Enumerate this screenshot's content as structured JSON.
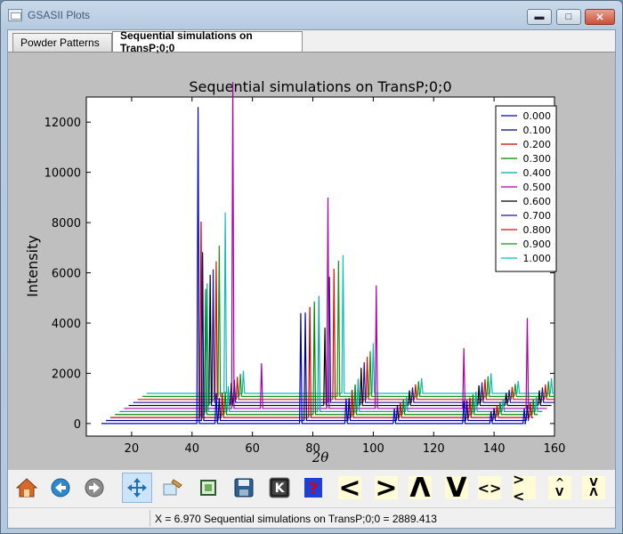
{
  "window": {
    "title": "GSASII Plots"
  },
  "tabs": [
    {
      "label": "Powder Patterns",
      "active": false
    },
    {
      "label": "Sequential simulations on TransP;0;0",
      "active": true
    }
  ],
  "toolbar": {
    "buttons": [
      {
        "name": "home-button",
        "icon": "home-icon"
      },
      {
        "name": "back-button",
        "icon": "back-arrow-icon"
      },
      {
        "name": "forward-button",
        "icon": "forward-arrow-icon"
      },
      {
        "name": "pan-button",
        "icon": "pan-arrows-icon",
        "active": true
      },
      {
        "name": "zoom-button",
        "icon": "zoom-icon"
      },
      {
        "name": "subplots-button",
        "icon": "subplots-icon"
      },
      {
        "name": "save-button",
        "icon": "floppy-disk-icon"
      },
      {
        "name": "key-button",
        "icon": "key-k-icon"
      },
      {
        "name": "help-button",
        "icon": "help-question-icon"
      }
    ],
    "glyph_buttons": [
      "<",
      ">",
      "Λ",
      "V",
      "<>",
      "><",
      "^\nV",
      "V\nΛ"
    ]
  },
  "status": {
    "text": "X =    6.970 Sequential simulations on TransP;0;0 = 2889.413"
  },
  "colors": {
    "accent": "#3399ff"
  },
  "chart_data": {
    "type": "line",
    "title": "Sequential simulations on TransP;0;0",
    "xlabel": "2θ",
    "ylabel": "Intensity",
    "xlim": [
      5,
      160
    ],
    "ylim": [
      -500,
      13000
    ],
    "xticks": [
      20,
      40,
      60,
      80,
      100,
      120,
      140,
      160
    ],
    "yticks": [
      0,
      2000,
      4000,
      6000,
      8000,
      10000,
      12000
    ],
    "x_offset_per_series": 1.5,
    "y_offset_per_series": 120,
    "x_range_series0": [
      10,
      150
    ],
    "legend_position": "top-right",
    "series": [
      {
        "name": "0.000",
        "color": "#0000cc",
        "peaks": [
          [
            42,
            12600
          ],
          [
            48,
            1200
          ],
          [
            76,
            4400
          ],
          [
            91,
            1000
          ],
          [
            107,
            600
          ],
          [
            130,
            900
          ],
          [
            139,
            500
          ],
          [
            150,
            600
          ]
        ]
      },
      {
        "name": "0.100",
        "color": "#000088",
        "peaks": [
          [
            43.5,
            6700
          ],
          [
            49,
            900
          ],
          [
            77.5,
            4300
          ],
          [
            92,
            900
          ],
          [
            108,
            600
          ],
          [
            131,
            800
          ],
          [
            140,
            500
          ],
          [
            151,
            600
          ]
        ]
      },
      {
        "name": "0.200",
        "color": "#cc0000",
        "peaks": [
          [
            43,
            7800
          ],
          [
            50,
            1000
          ],
          [
            79,
            4400
          ],
          [
            93,
            1100
          ],
          [
            109,
            600
          ],
          [
            132,
            800
          ],
          [
            141,
            500
          ],
          [
            152,
            600
          ]
        ]
      },
      {
        "name": "0.300",
        "color": "#008800",
        "peaks": [
          [
            44.5,
            5000
          ],
          [
            51,
            900
          ],
          [
            80.5,
            4500
          ],
          [
            94,
            1200
          ],
          [
            110,
            600
          ],
          [
            133,
            800
          ],
          [
            142,
            500
          ],
          [
            153,
            600
          ]
        ]
      },
      {
        "name": "0.400",
        "color": "#00aaaa",
        "peaks": [
          [
            45,
            5100
          ],
          [
            52,
            1000
          ],
          [
            82,
            4600
          ],
          [
            95,
            1300
          ],
          [
            111,
            600
          ],
          [
            134,
            800
          ],
          [
            143,
            500
          ],
          [
            154,
            600
          ]
        ]
      },
      {
        "name": "0.500",
        "color": "#aa00aa",
        "peaks": [
          [
            53.5,
            13000
          ],
          [
            63,
            1800
          ],
          [
            85,
            8400
          ],
          [
            101,
            4900
          ],
          [
            130,
            2400
          ],
          [
            151,
            3600
          ]
        ]
      },
      {
        "name": "0.600",
        "color": "#000000",
        "peaks": [
          [
            46,
            5200
          ],
          [
            53,
            900
          ],
          [
            84,
            3100
          ],
          [
            96,
            1500
          ],
          [
            112,
            600
          ],
          [
            135,
            800
          ],
          [
            144,
            500
          ],
          [
            155,
            600
          ]
        ]
      },
      {
        "name": "0.700",
        "color": "#1a1a99",
        "peaks": [
          [
            47,
            5300
          ],
          [
            54,
            900
          ],
          [
            85.5,
            5000
          ],
          [
            97,
            1600
          ],
          [
            113,
            600
          ],
          [
            136,
            800
          ],
          [
            145,
            500
          ],
          [
            156,
            600
          ]
        ]
      },
      {
        "name": "0.800",
        "color": "#dd1111",
        "peaks": [
          [
            48,
            5500
          ],
          [
            55,
            900
          ],
          [
            87,
            5200
          ],
          [
            98,
            1700
          ],
          [
            114,
            600
          ],
          [
            137,
            800
          ],
          [
            146,
            500
          ],
          [
            157,
            600
          ]
        ]
      },
      {
        "name": "0.900",
        "color": "#119911",
        "peaks": [
          [
            49,
            6000
          ],
          [
            56,
            900
          ],
          [
            88.5,
            5400
          ],
          [
            99,
            1800
          ],
          [
            115,
            600
          ],
          [
            138,
            800
          ],
          [
            147,
            500
          ],
          [
            158,
            600
          ]
        ]
      },
      {
        "name": "1.000",
        "color": "#11bbbb",
        "peaks": [
          [
            51,
            7200
          ],
          [
            57,
            900
          ],
          [
            90,
            5500
          ],
          [
            100,
            2000
          ],
          [
            116,
            600
          ],
          [
            139,
            800
          ],
          [
            148,
            500
          ],
          [
            159,
            600
          ]
        ]
      }
    ]
  }
}
